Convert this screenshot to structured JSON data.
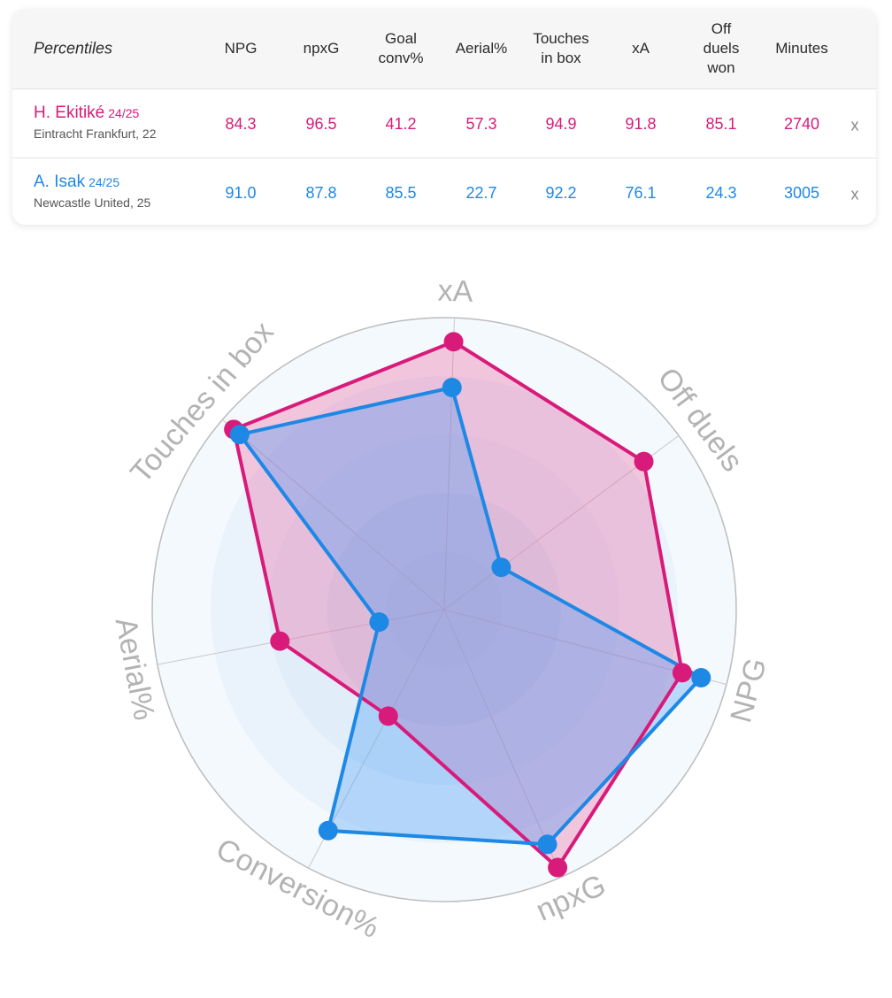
{
  "table": {
    "title": "Percentiles",
    "columns": [
      "NPG",
      "npxG",
      "Goal\nconv%",
      "Aerial%",
      "Touches\nin box",
      "xA",
      "Off\nduels\nwon",
      "Minutes"
    ],
    "remove_label": "x",
    "players": [
      {
        "name": "H. Ekitiké",
        "season": "24/25",
        "club": "Eintracht Frankfurt, 22",
        "values": [
          "84.3",
          "96.5",
          "41.2",
          "57.3",
          "94.9",
          "91.8",
          "85.1",
          "2740"
        ]
      },
      {
        "name": "A. Isak",
        "season": "24/25",
        "club": "Newcastle United, 25",
        "values": [
          "91.0",
          "87.8",
          "85.5",
          "22.7",
          "92.2",
          "76.1",
          "24.3",
          "3005"
        ]
      }
    ]
  },
  "colors": {
    "player1": "#d81b7a",
    "player2": "#1e88e5",
    "player1_fill": "rgba(235,80,150,0.30)",
    "player2_fill": "rgba(60,150,245,0.32)",
    "axis_label": "#b3b3b3"
  },
  "chart_data": {
    "type": "radar",
    "axes": [
      "xA",
      "Off duels",
      "NPG",
      "npxG",
      "Conversion%",
      "Aerial%",
      "Touches in box"
    ],
    "range": [
      0,
      100
    ],
    "series": [
      {
        "name": "H. Ekitiké",
        "values": [
          91.8,
          85.1,
          84.3,
          96.5,
          41.2,
          57.3,
          94.9
        ]
      },
      {
        "name": "A. Isak",
        "values": [
          76.1,
          24.3,
          91.0,
          87.8,
          85.5,
          22.7,
          92.2
        ]
      }
    ]
  }
}
